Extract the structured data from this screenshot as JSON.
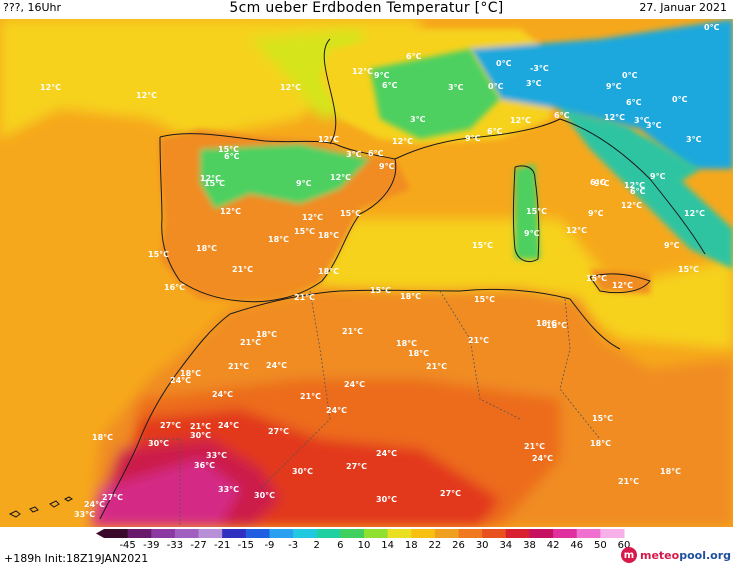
{
  "header": {
    "left": "???, 16Uhr",
    "title": "5cm ueber Erdboden Temperatur [°C]",
    "date": "27. Januar 2021"
  },
  "footer": {
    "run_info": "+189h  Init:18Z19JAN2021",
    "logo_brand": "meteo",
    "logo_suffix": "pool.org"
  },
  "colorbar": {
    "ticks": [
      "-45",
      "-39",
      "-33",
      "-27",
      "-21",
      "-15",
      "-9",
      "-3",
      "2",
      "6",
      "10",
      "14",
      "18",
      "22",
      "26",
      "30",
      "34",
      "38",
      "42",
      "46",
      "50",
      "60"
    ],
    "colors": [
      "#3a0a2a",
      "#6a1a6a",
      "#8a3aa0",
      "#a060c0",
      "#b890d8",
      "#3030c0",
      "#2060e0",
      "#2aa0f0",
      "#20c8e0",
      "#20d0a0",
      "#40d060",
      "#90e030",
      "#e8e020",
      "#f8c010",
      "#f0a020",
      "#f07820",
      "#e85020",
      "#d82030",
      "#c81060",
      "#e030a0",
      "#f070d0",
      "#f8b0e8"
    ]
  },
  "map": {
    "colors": {
      "sea_gold": "#f6a81c",
      "sea_yellow": "#f6d21c",
      "sea_yellowgreen": "#d6e41a",
      "land_orange": "#f08c22",
      "land_deep": "#ec6c1e",
      "land_red": "#e2381c",
      "land_crimson": "#cc1a48",
      "land_magenta": "#d42a86",
      "alps_cold": "#2ec4a2",
      "alps_green": "#4ed060",
      "alps_blue": "#1ea8dc",
      "coast": "#1a1a1a"
    },
    "labels": [
      {
        "id": "t01",
        "text": "12°C"
      },
      {
        "id": "t02",
        "text": "12°C"
      },
      {
        "id": "t03",
        "text": "12°C"
      },
      {
        "id": "t04",
        "text": "12°C"
      },
      {
        "id": "t05",
        "text": "12°C"
      },
      {
        "id": "t06",
        "text": "9°C"
      },
      {
        "id": "t07",
        "text": "6°C"
      },
      {
        "id": "t08",
        "text": "6°C"
      },
      {
        "id": "t09",
        "text": "3°C"
      },
      {
        "id": "t10",
        "text": "0°C"
      },
      {
        "id": "t11",
        "text": "-3°C"
      },
      {
        "id": "t12",
        "text": "3°C"
      },
      {
        "id": "t13",
        "text": "0°C"
      },
      {
        "id": "t14",
        "text": "3°C"
      },
      {
        "id": "t15",
        "text": "0°C"
      },
      {
        "id": "t16",
        "text": "0°C"
      },
      {
        "id": "t17",
        "text": "0°C"
      },
      {
        "id": "t18",
        "text": "9°C"
      },
      {
        "id": "t19",
        "text": "6°C"
      },
      {
        "id": "t20",
        "text": "12°C"
      },
      {
        "id": "t21",
        "text": "3°C"
      },
      {
        "id": "t22",
        "text": "3°C"
      },
      {
        "id": "t23",
        "text": "3°C"
      },
      {
        "id": "t24",
        "text": "9°C"
      },
      {
        "id": "t25",
        "text": "6°C"
      },
      {
        "id": "t26",
        "text": "12°C"
      },
      {
        "id": "t27",
        "text": "6°C"
      },
      {
        "id": "t28",
        "text": "12°C"
      },
      {
        "id": "t29",
        "text": "15°C"
      },
      {
        "id": "t30",
        "text": "6°C"
      },
      {
        "id": "t31",
        "text": "3°C"
      },
      {
        "id": "t32",
        "text": "6°C"
      },
      {
        "id": "t33",
        "text": "9°C"
      },
      {
        "id": "t34",
        "text": "12°C"
      },
      {
        "id": "t35",
        "text": "15°C"
      },
      {
        "id": "t36",
        "text": "9°C"
      },
      {
        "id": "t37",
        "text": "12°C"
      },
      {
        "id": "t38",
        "text": "12°C"
      },
      {
        "id": "t39",
        "text": "12°C"
      },
      {
        "id": "t40",
        "text": "15°C"
      },
      {
        "id": "t41",
        "text": "15°C"
      },
      {
        "id": "t42",
        "text": "18°C"
      },
      {
        "id": "t43",
        "text": "18°C"
      },
      {
        "id": "t44",
        "text": "18°C"
      },
      {
        "id": "t45",
        "text": "15°C"
      },
      {
        "id": "t46",
        "text": "21°C"
      },
      {
        "id": "t47",
        "text": "18°C"
      },
      {
        "id": "t48",
        "text": "16°C"
      },
      {
        "id": "t49",
        "text": "21°C"
      },
      {
        "id": "t50",
        "text": "15°C"
      },
      {
        "id": "t51",
        "text": "18°C"
      },
      {
        "id": "t52",
        "text": "15°C"
      },
      {
        "id": "t53",
        "text": "9°C"
      },
      {
        "id": "t54",
        "text": "6°C"
      },
      {
        "id": "t55",
        "text": "12°C"
      },
      {
        "id": "t56",
        "text": "9°C"
      },
      {
        "id": "t57",
        "text": "12°C"
      },
      {
        "id": "t58",
        "text": "6°C"
      },
      {
        "id": "t59",
        "text": "9°C"
      },
      {
        "id": "t60",
        "text": "12°C"
      },
      {
        "id": "t61",
        "text": "9°C"
      },
      {
        "id": "t62",
        "text": "15°C"
      },
      {
        "id": "t63",
        "text": "12°C"
      },
      {
        "id": "t64",
        "text": "15°C"
      },
      {
        "id": "t65",
        "text": "15°C"
      },
      {
        "id": "t66",
        "text": "9°C"
      },
      {
        "id": "t67",
        "text": "12°C"
      },
      {
        "id": "t68",
        "text": "18°C"
      },
      {
        "id": "t69",
        "text": "15°C"
      },
      {
        "id": "t70",
        "text": "18°C"
      },
      {
        "id": "t71",
        "text": "21°C"
      },
      {
        "id": "t72",
        "text": "18°C"
      },
      {
        "id": "t73",
        "text": "21°C"
      },
      {
        "id": "t74",
        "text": "18°C"
      },
      {
        "id": "t75",
        "text": "18°C"
      },
      {
        "id": "t76",
        "text": "21°C"
      },
      {
        "id": "t77",
        "text": "21°C"
      },
      {
        "id": "t78",
        "text": "24°C"
      },
      {
        "id": "t79",
        "text": "21°C"
      },
      {
        "id": "t80",
        "text": "18°C"
      },
      {
        "id": "t81",
        "text": "24°C"
      },
      {
        "id": "t82",
        "text": "24°C"
      },
      {
        "id": "t83",
        "text": "21°C"
      },
      {
        "id": "t84",
        "text": "24°C"
      },
      {
        "id": "t85",
        "text": "18°C"
      },
      {
        "id": "t86",
        "text": "27°C"
      },
      {
        "id": "t87",
        "text": "30°C"
      },
      {
        "id": "t88",
        "text": "21°C"
      },
      {
        "id": "t89",
        "text": "24°C"
      },
      {
        "id": "t90",
        "text": "27°C"
      },
      {
        "id": "t91",
        "text": "24°C"
      },
      {
        "id": "t92",
        "text": "21°C"
      },
      {
        "id": "t93",
        "text": "24°C"
      },
      {
        "id": "t94",
        "text": "15°C"
      },
      {
        "id": "t95",
        "text": "18°C"
      },
      {
        "id": "t96",
        "text": "30°C"
      },
      {
        "id": "t97",
        "text": "33°C"
      },
      {
        "id": "t98",
        "text": "36°C"
      },
      {
        "id": "t99",
        "text": "30°C"
      },
      {
        "id": "t100",
        "text": "27°C"
      },
      {
        "id": "t101",
        "text": "24°C"
      },
      {
        "id": "t102",
        "text": "18°C"
      },
      {
        "id": "t103",
        "text": "21°C"
      },
      {
        "id": "t104",
        "text": "33°C"
      },
      {
        "id": "t105",
        "text": "30°C"
      },
      {
        "id": "t106",
        "text": "30°C"
      },
      {
        "id": "t107",
        "text": "27°C"
      },
      {
        "id": "t108",
        "text": "27°C"
      },
      {
        "id": "t109",
        "text": "24°C"
      },
      {
        "id": "t110",
        "text": "33°C"
      }
    ]
  }
}
